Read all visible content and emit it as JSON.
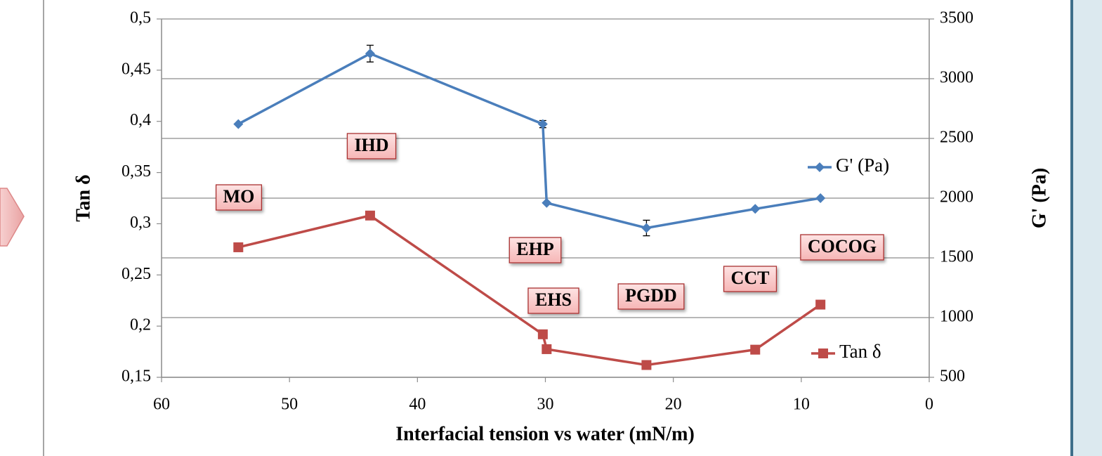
{
  "chart_data": {
    "type": "line",
    "xlabel": "Interfacial tension vs water (mN/m)",
    "ylabel": "Tan δ",
    "y2label": "G' (Pa)",
    "x": [
      54.0,
      43.7,
      30.2,
      29.9,
      22.1,
      13.6,
      8.5
    ],
    "xlim": [
      60,
      0
    ],
    "xticks": [
      60,
      50,
      40,
      30,
      20,
      10,
      0
    ],
    "ylim": [
      0.15,
      0.5
    ],
    "yticks": [
      {
        "value": 0.15,
        "label": "0,15"
      },
      {
        "value": 0.2,
        "label": "0,2"
      },
      {
        "value": 0.25,
        "label": "0,25"
      },
      {
        "value": 0.3,
        "label": "0,3"
      },
      {
        "value": 0.35,
        "label": "0,35"
      },
      {
        "value": 0.4,
        "label": "0,4"
      },
      {
        "value": 0.45,
        "label": "0,45"
      },
      {
        "value": 0.5,
        "label": "0,5"
      }
    ],
    "y2lim": [
      500,
      3500
    ],
    "y2ticks": [
      500,
      1000,
      1500,
      2000,
      2500,
      3000,
      3500
    ],
    "grid": "y2",
    "series": [
      {
        "name": "G' (Pa)",
        "color": "#4a7ebb",
        "marker": "diamond",
        "axis": "y2",
        "values": [
          2620,
          3210,
          2620,
          1960,
          1750,
          1910,
          2000
        ],
        "errors": [
          null,
          70,
          30,
          null,
          65,
          null,
          null
        ]
      },
      {
        "name": "Tan δ",
        "color": "#be4b48",
        "marker": "square",
        "axis": "y",
        "values": [
          0.277,
          0.308,
          0.192,
          0.1775,
          0.162,
          0.177,
          0.221
        ]
      }
    ],
    "annotations": [
      "MO",
      "IHD",
      "EHP",
      "EHS",
      "PGDD",
      "CCT",
      "COCOG"
    ]
  }
}
